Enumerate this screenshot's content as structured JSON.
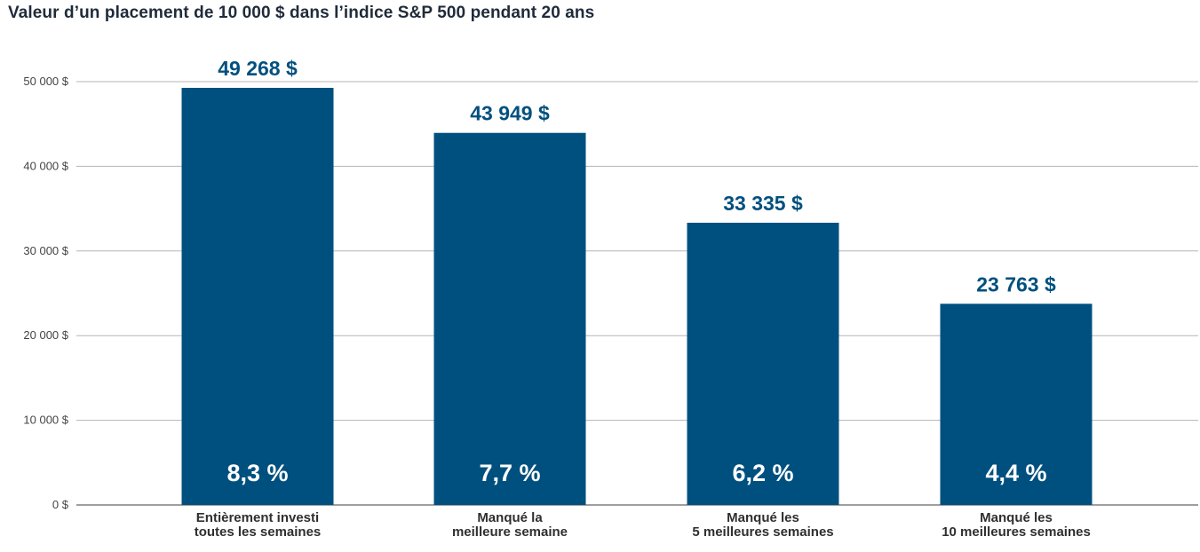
{
  "colors": {
    "bar": "#00507f",
    "value_label": "#00507f",
    "grid": "#b5b5b5",
    "axis": "#666666"
  },
  "chart_data": {
    "type": "bar",
    "title": "Valeur d’un placement de 10 000 $ dans l’indice S&P 500 pendant 20 ans",
    "xlabel": "",
    "ylabel": "",
    "ylim": [
      0,
      50000
    ],
    "grid": true,
    "y_ticks": [
      {
        "value": 0,
        "label": "0 $"
      },
      {
        "value": 10000,
        "label": "10 000 $"
      },
      {
        "value": 20000,
        "label": "20 000 $"
      },
      {
        "value": 30000,
        "label": "30 000 $"
      },
      {
        "value": 40000,
        "label": "40 000 $"
      },
      {
        "value": 50000,
        "label": "50 000 $"
      }
    ],
    "categories": [
      [
        "Entièrement investi",
        "toutes les semaines"
      ],
      [
        "Manqué la",
        "meilleure semaine"
      ],
      [
        "Manqué les",
        "5 meilleures semaines"
      ],
      [
        "Manqué les",
        "10 meilleures semaines"
      ]
    ],
    "values": [
      49268,
      43949,
      33335,
      23763
    ],
    "value_labels": [
      "49 268 $",
      "43 949 $",
      "33 335 $",
      "23 763 $"
    ],
    "bar_labels": [
      "8,3 %",
      "7,7 %",
      "6,2 %",
      "4,4 %"
    ]
  }
}
